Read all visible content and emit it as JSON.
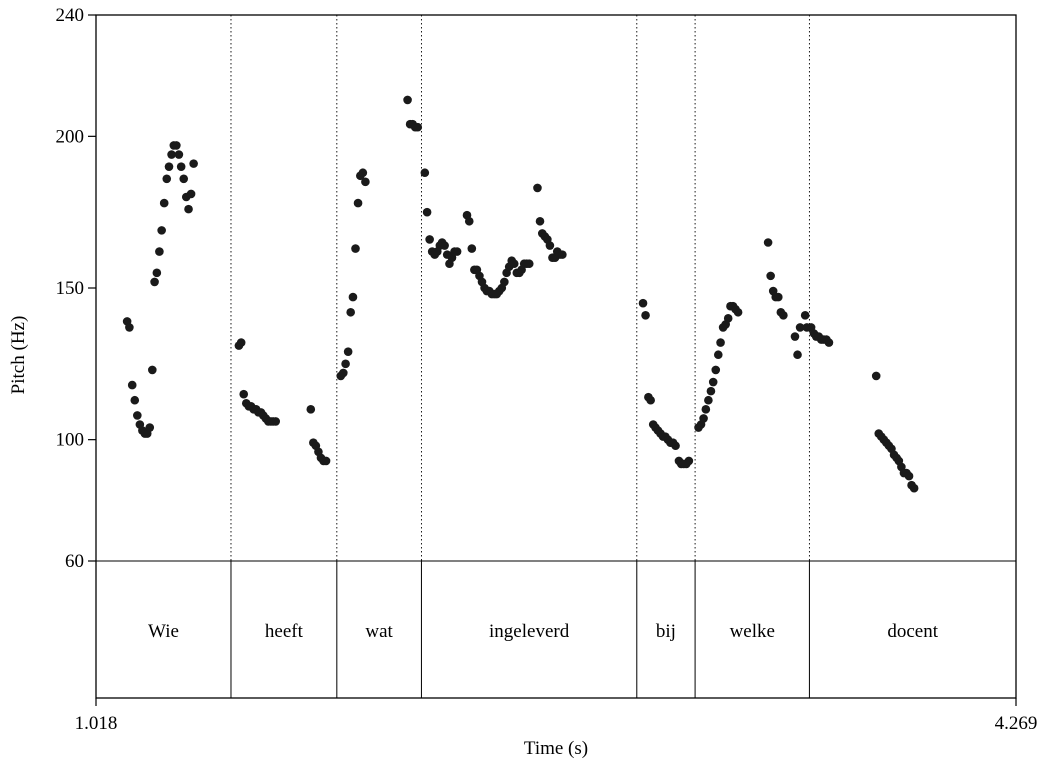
{
  "chart_data": {
    "type": "scatter",
    "title": "",
    "xlabel": "Time (s)",
    "ylabel": "Pitch (Hz)",
    "xlim": [
      1.018,
      4.269
    ],
    "ylim": [
      60,
      240
    ],
    "x_tick_labels": [
      "1.018",
      "4.269"
    ],
    "y_ticks": [
      60,
      100,
      150,
      200,
      240
    ],
    "y_tick_labels": [
      "60",
      "100",
      "150",
      "200",
      "240"
    ],
    "grid": false,
    "boundaries": [
      1.495,
      1.869,
      2.168,
      2.929,
      3.135,
      3.539
    ],
    "words": [
      {
        "label": "Wie",
        "start": 1.018,
        "end": 1.495
      },
      {
        "label": "heeft",
        "start": 1.495,
        "end": 1.869
      },
      {
        "label": "wat",
        "start": 1.869,
        "end": 2.168
      },
      {
        "label": "ingeleverd",
        "start": 2.168,
        "end": 2.929
      },
      {
        "label": "bij",
        "start": 2.929,
        "end": 3.135
      },
      {
        "label": "welke",
        "start": 3.135,
        "end": 3.539
      },
      {
        "label": "docent",
        "start": 3.539,
        "end": 4.269
      }
    ],
    "series": [
      {
        "points": [
          [
            1.128,
            139
          ],
          [
            1.136,
            137
          ],
          [
            1.146,
            118
          ],
          [
            1.155,
            113
          ],
          [
            1.164,
            108
          ],
          [
            1.173,
            105
          ],
          [
            1.182,
            103
          ],
          [
            1.191,
            102
          ],
          [
            1.199,
            102
          ],
          [
            1.208,
            104
          ],
          [
            1.217,
            123
          ],
          [
            1.225,
            152
          ],
          [
            1.233,
            155
          ],
          [
            1.242,
            162
          ],
          [
            1.25,
            169
          ],
          [
            1.259,
            178
          ],
          [
            1.268,
            186
          ],
          [
            1.276,
            190
          ],
          [
            1.285,
            194
          ],
          [
            1.293,
            197
          ],
          [
            1.302,
            197
          ],
          [
            1.311,
            194
          ],
          [
            1.319,
            190
          ],
          [
            1.328,
            186
          ],
          [
            1.337,
            180
          ],
          [
            1.345,
            176
          ],
          [
            1.354,
            181
          ],
          [
            1.363,
            191
          ],
          [
            1.523,
            131
          ],
          [
            1.531,
            132
          ],
          [
            1.54,
            115
          ],
          [
            1.549,
            112
          ],
          [
            1.558,
            111
          ],
          [
            1.566,
            111
          ],
          [
            1.575,
            110
          ],
          [
            1.584,
            110
          ],
          [
            1.592,
            109
          ],
          [
            1.601,
            109
          ],
          [
            1.609,
            108
          ],
          [
            1.618,
            107
          ],
          [
            1.627,
            106
          ],
          [
            1.636,
            106
          ],
          [
            1.644,
            106
          ],
          [
            1.653,
            106
          ],
          [
            1.777,
            110
          ],
          [
            1.786,
            99
          ],
          [
            1.795,
            98
          ],
          [
            1.804,
            96
          ],
          [
            1.813,
            94
          ],
          [
            1.822,
            93
          ],
          [
            1.831,
            93
          ],
          [
            1.883,
            121
          ],
          [
            1.892,
            122
          ],
          [
            1.9,
            125
          ],
          [
            1.909,
            129
          ],
          [
            1.918,
            142
          ],
          [
            1.926,
            147
          ],
          [
            1.935,
            163
          ],
          [
            1.944,
            178
          ],
          [
            1.952,
            187
          ],
          [
            1.961,
            188
          ],
          [
            1.97,
            185
          ],
          [
            2.119,
            212
          ],
          [
            2.128,
            204
          ],
          [
            2.137,
            204
          ],
          [
            2.146,
            203
          ],
          [
            2.155,
            203
          ],
          [
            2.18,
            188
          ],
          [
            2.188,
            175
          ],
          [
            2.197,
            166
          ],
          [
            2.206,
            162
          ],
          [
            2.215,
            161
          ],
          [
            2.224,
            162
          ],
          [
            2.233,
            164
          ],
          [
            2.241,
            165
          ],
          [
            2.25,
            164
          ],
          [
            2.259,
            161
          ],
          [
            2.267,
            158
          ],
          [
            2.276,
            160
          ],
          [
            2.285,
            162
          ],
          [
            2.294,
            162
          ],
          [
            2.329,
            174
          ],
          [
            2.337,
            172
          ],
          [
            2.346,
            163
          ],
          [
            2.355,
            156
          ],
          [
            2.364,
            156
          ],
          [
            2.373,
            154
          ],
          [
            2.382,
            152
          ],
          [
            2.391,
            150
          ],
          [
            2.399,
            149
          ],
          [
            2.408,
            149
          ],
          [
            2.417,
            148
          ],
          [
            2.426,
            148
          ],
          [
            2.434,
            148
          ],
          [
            2.443,
            149
          ],
          [
            2.452,
            150
          ],
          [
            2.461,
            152
          ],
          [
            2.469,
            155
          ],
          [
            2.478,
            157
          ],
          [
            2.487,
            159
          ],
          [
            2.496,
            158
          ],
          [
            2.505,
            155
          ],
          [
            2.514,
            155
          ],
          [
            2.522,
            156
          ],
          [
            2.531,
            158
          ],
          [
            2.54,
            158
          ],
          [
            2.549,
            158
          ],
          [
            2.578,
            183
          ],
          [
            2.587,
            172
          ],
          [
            2.595,
            168
          ],
          [
            2.604,
            167
          ],
          [
            2.613,
            166
          ],
          [
            2.622,
            164
          ],
          [
            2.631,
            160
          ],
          [
            2.64,
            160
          ],
          [
            2.648,
            162
          ],
          [
            2.657,
            161
          ],
          [
            2.666,
            161
          ],
          [
            2.951,
            145
          ],
          [
            2.96,
            141
          ],
          [
            2.97,
            114
          ],
          [
            2.978,
            113
          ],
          [
            2.987,
            105
          ],
          [
            2.995,
            104
          ],
          [
            3.004,
            103
          ],
          [
            3.013,
            102
          ],
          [
            3.022,
            101
          ],
          [
            3.03,
            101
          ],
          [
            3.039,
            100
          ],
          [
            3.048,
            99
          ],
          [
            3.057,
            99
          ],
          [
            3.066,
            98
          ],
          [
            3.078,
            93
          ],
          [
            3.086,
            92
          ],
          [
            3.095,
            92
          ],
          [
            3.104,
            92
          ],
          [
            3.113,
            93
          ],
          [
            3.147,
            104
          ],
          [
            3.156,
            105
          ],
          [
            3.165,
            107
          ],
          [
            3.173,
            110
          ],
          [
            3.182,
            113
          ],
          [
            3.191,
            116
          ],
          [
            3.199,
            119
          ],
          [
            3.208,
            123
          ],
          [
            3.217,
            128
          ],
          [
            3.225,
            132
          ],
          [
            3.234,
            137
          ],
          [
            3.243,
            138
          ],
          [
            3.252,
            140
          ],
          [
            3.26,
            144
          ],
          [
            3.269,
            144
          ],
          [
            3.278,
            143
          ],
          [
            3.287,
            142
          ],
          [
            3.393,
            165
          ],
          [
            3.402,
            154
          ],
          [
            3.411,
            149
          ],
          [
            3.42,
            147
          ],
          [
            3.429,
            147
          ],
          [
            3.438,
            142
          ],
          [
            3.447,
            141
          ],
          [
            3.488,
            134
          ],
          [
            3.497,
            128
          ],
          [
            3.506,
            137
          ],
          [
            3.524,
            141
          ],
          [
            3.53,
            137
          ],
          [
            3.545,
            137
          ],
          [
            3.555,
            135
          ],
          [
            3.563,
            134
          ],
          [
            3.572,
            134
          ],
          [
            3.581,
            133
          ],
          [
            3.59,
            133
          ],
          [
            3.599,
            133
          ],
          [
            3.608,
            132
          ],
          [
            3.775,
            121
          ],
          [
            3.784,
            102
          ],
          [
            3.793,
            101
          ],
          [
            3.802,
            100
          ],
          [
            3.811,
            99
          ],
          [
            3.82,
            98
          ],
          [
            3.829,
            97
          ],
          [
            3.838,
            95
          ],
          [
            3.847,
            94
          ],
          [
            3.855,
            93
          ],
          [
            3.864,
            91
          ],
          [
            3.873,
            89
          ],
          [
            3.882,
            89
          ],
          [
            3.891,
            88
          ],
          [
            3.9,
            85
          ],
          [
            3.909,
            84
          ]
        ]
      }
    ]
  }
}
